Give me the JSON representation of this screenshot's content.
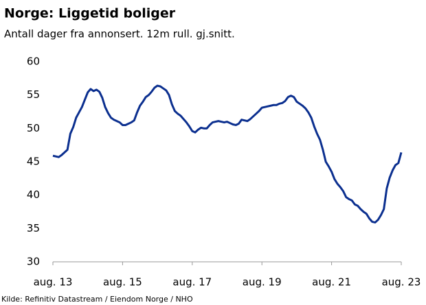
{
  "chart_data": {
    "type": "line",
    "title": "Norge:  Liggetid boliger",
    "subtitle": "Antall dager fra annonsert. 12m rull. gj.snitt.",
    "source": "Kilde: Refinitiv Datastream / Eiendom Norge / NHO",
    "categories": [
      "aug. 13",
      null,
      null,
      null,
      null,
      null,
      null,
      null,
      null,
      null,
      null,
      null,
      null,
      null,
      null,
      null,
      null,
      null,
      null,
      null,
      null,
      null,
      null,
      null,
      "aug. 15",
      null,
      null,
      null,
      null,
      null,
      null,
      null,
      null,
      null,
      null,
      null,
      null,
      null,
      null,
      null,
      null,
      null,
      null,
      null,
      null,
      null,
      null,
      null,
      "aug. 17",
      null,
      null,
      null,
      null,
      null,
      null,
      null,
      null,
      null,
      null,
      null,
      null,
      null,
      null,
      null,
      null,
      null,
      null,
      null,
      null,
      null,
      null,
      null,
      "aug. 19",
      null,
      null,
      null,
      null,
      null,
      null,
      null,
      null,
      null,
      null,
      null,
      null,
      null,
      null,
      null,
      null,
      null,
      null,
      null,
      null,
      null,
      null,
      null,
      "aug. 21",
      null,
      null,
      null,
      null,
      null,
      null,
      null,
      null,
      null,
      null,
      null,
      null,
      null,
      null,
      null,
      null,
      null,
      null,
      null,
      null,
      null,
      null,
      null,
      "aug. 23"
    ],
    "series": [
      {
        "color": "#0b2f8f",
        "values": [
          45.9,
          45.8,
          45.7,
          46.0,
          46.4,
          46.8,
          49.2,
          50.2,
          51.6,
          52.4,
          53.2,
          54.3,
          55.4,
          55.9,
          55.6,
          55.8,
          55.5,
          54.6,
          53.2,
          52.3,
          51.6,
          51.3,
          51.1,
          50.9,
          50.5,
          50.5,
          50.7,
          50.9,
          51.2,
          52.4,
          53.4,
          54.0,
          54.7,
          55.0,
          55.5,
          56.1,
          56.4,
          56.3,
          56.0,
          55.7,
          55.0,
          53.6,
          52.6,
          52.2,
          51.9,
          51.4,
          50.9,
          50.3,
          49.6,
          49.4,
          49.8,
          50.1,
          50.0,
          50.0,
          50.5,
          50.9,
          51.0,
          51.1,
          51.0,
          50.9,
          51.0,
          50.8,
          50.6,
          50.5,
          50.7,
          51.3,
          51.2,
          51.1,
          51.4,
          51.8,
          52.2,
          52.6,
          53.1,
          53.2,
          53.3,
          53.4,
          53.5,
          53.5,
          53.7,
          53.8,
          54.1,
          54.7,
          54.9,
          54.7,
          54.0,
          53.7,
          53.4,
          53.0,
          52.4,
          51.6,
          50.3,
          49.2,
          48.3,
          46.8,
          45.0,
          44.3,
          43.5,
          42.4,
          41.7,
          41.2,
          40.6,
          39.7,
          39.4,
          39.2,
          38.6,
          38.4,
          37.9,
          37.5,
          37.2,
          36.5,
          36.0,
          35.9,
          36.3,
          37.0,
          37.9,
          41.0,
          42.6,
          43.7,
          44.5,
          44.8,
          46.4
        ]
      }
    ],
    "ylim": [
      30,
      60
    ],
    "yticks": [
      30,
      35,
      40,
      45,
      50,
      55,
      60
    ],
    "grid": false
  }
}
